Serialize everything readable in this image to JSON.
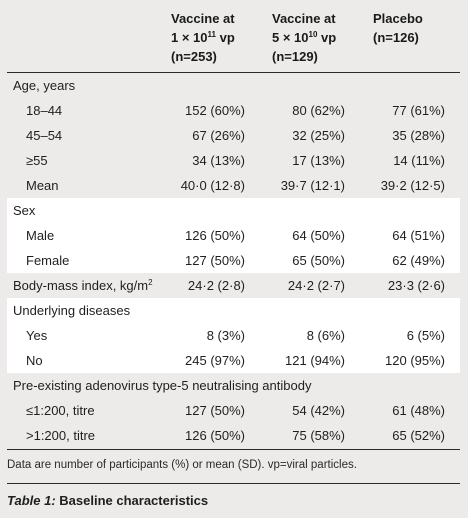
{
  "header": {
    "col1": [
      "Vaccine at",
      "1×10¹¹ vp",
      "(n=253)"
    ],
    "col2": [
      "Vaccine at",
      "5×10¹⁰ vp",
      "(n=129)"
    ],
    "col3": [
      "Placebo",
      "(n=126)"
    ]
  },
  "rows": [
    {
      "label": "Age, years",
      "indent": false,
      "v1": "",
      "v2": "",
      "v3": ""
    },
    {
      "label": "18–44",
      "indent": true,
      "v1": "152 (60%)",
      "v2": "80 (62%)",
      "v3": "77 (61%)"
    },
    {
      "label": "45–54",
      "indent": true,
      "v1": "67 (26%)",
      "v2": "32 (25%)",
      "v3": "35 (28%)"
    },
    {
      "label": "≥55",
      "indent": true,
      "v1": "34 (13%)",
      "v2": "17 (13%)",
      "v3": "14 (11%)"
    },
    {
      "label": "Mean",
      "indent": true,
      "v1": "40·0 (12·8)",
      "v2": "39·7 (12·1)",
      "v3": "39·2 (12·5)"
    },
    {
      "label": "Sex",
      "indent": false,
      "v1": "",
      "v2": "",
      "v3": ""
    },
    {
      "label": "Male",
      "indent": true,
      "v1": "126 (50%)",
      "v2": "64 (50%)",
      "v3": "64 (51%)"
    },
    {
      "label": "Female",
      "indent": true,
      "v1": "127 (50%)",
      "v2": "65 (50%)",
      "v3": "62 (49%)"
    },
    {
      "label": "Body-mass index, kg/m²",
      "indent": false,
      "v1": "24·2 (2·8)",
      "v2": "24·2 (2·7)",
      "v3": "23·3 (2·6)"
    },
    {
      "label": "Underlying diseases",
      "indent": false,
      "v1": "",
      "v2": "",
      "v3": ""
    },
    {
      "label": "Yes",
      "indent": true,
      "v1": "8 (3%)",
      "v2": "8 (6%)",
      "v3": "6 (5%)"
    },
    {
      "label": "No",
      "indent": true,
      "v1": "245 (97%)",
      "v2": "121 (94%)",
      "v3": "120 (95%)"
    },
    {
      "label": "Pre-existing adenovirus type-5 neutralising antibody",
      "indent": false,
      "v1": "",
      "v2": "",
      "v3": ""
    },
    {
      "label": "≤1:200, titre",
      "indent": true,
      "v1": "127 (50%)",
      "v2": "54 (42%)",
      "v3": "61 (48%)"
    },
    {
      "label": ">1:200, titre",
      "indent": true,
      "v1": "126 (50%)",
      "v2": "75 (58%)",
      "v3": "65 (52%)"
    }
  ],
  "bands": [
    {
      "shade": "alt",
      "rows": 5
    },
    {
      "shade": "white",
      "rows": 3
    },
    {
      "shade": "alt",
      "rows": 1
    },
    {
      "shade": "white",
      "rows": 3
    },
    {
      "shade": "alt",
      "rows": 3
    }
  ],
  "footnote": "Data are number of participants (%) or mean (SD). vp=viral particles.",
  "caption": {
    "label": "Table 1:",
    "title": " Baseline characteristics"
  }
}
